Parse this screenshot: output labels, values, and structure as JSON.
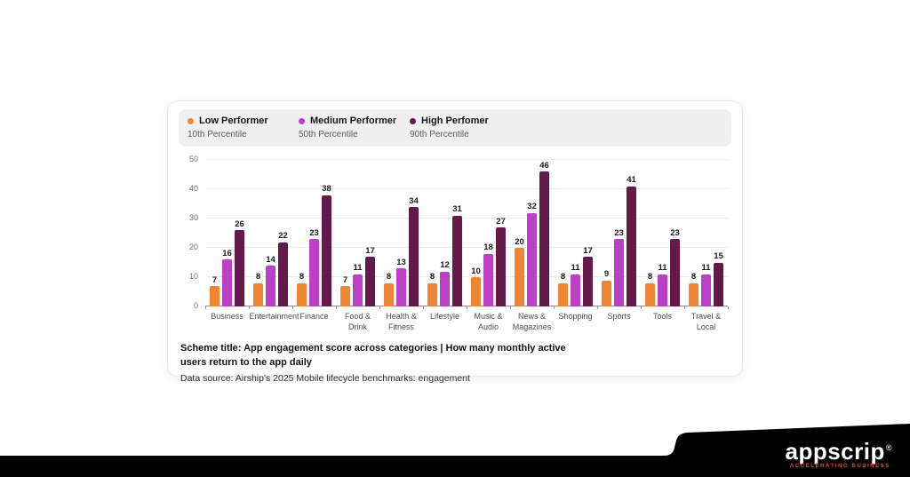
{
  "legend": {
    "items": [
      {
        "label": "Low Performer",
        "sublabel": "10th Percentile",
        "color": "#EE8634"
      },
      {
        "label": "Medium Performer",
        "sublabel": "50th Percentile",
        "color": "#BB40C7"
      },
      {
        "label": "High Perfomer",
        "sublabel": "90th Percentile",
        "color": "#65184A"
      }
    ]
  },
  "chart_data": {
    "type": "bar",
    "title": "App engagement score across categories",
    "categories": [
      "Business",
      "Entertainment",
      "Finance",
      "Food & Drink",
      "Health & Fitness",
      "Lifestyle",
      "Music & Audio",
      "News & Magazines",
      "Shopping",
      "Sports",
      "Tools",
      "Travel & Local"
    ],
    "series": [
      {
        "name": "Low Performer",
        "color": "#EE8634",
        "values": [
          7,
          8,
          8,
          7,
          8,
          8,
          10,
          20,
          8,
          9,
          8,
          8
        ]
      },
      {
        "name": "Medium Performer",
        "color": "#BB40C7",
        "values": [
          16,
          14,
          23,
          11,
          13,
          12,
          18,
          32,
          11,
          23,
          11,
          11
        ]
      },
      {
        "name": "High Perfomer",
        "color": "#65184A",
        "values": [
          26,
          22,
          38,
          17,
          34,
          31,
          27,
          46,
          17,
          41,
          23,
          15
        ]
      }
    ],
    "ylim": [
      0,
      50
    ],
    "yticks": [
      0,
      10,
      20,
      30,
      40,
      50
    ],
    "grid": true,
    "legend_position": "top",
    "value_labels": true
  },
  "caption": {
    "scheme_title": "Scheme title: App engagement score across categories | How many monthly active users return to the app daily",
    "data_source": "Data source: Airship's 2025 Mobile lifecycle benchmarks: engagement"
  },
  "branding": {
    "logo_text": "appscrip",
    "registered_mark": "®",
    "tagline": "ACCELERATING BUSINESS",
    "banner_color": "#000000",
    "logo_text_color": "#ffffff",
    "tagline_color": "#E8432D"
  }
}
